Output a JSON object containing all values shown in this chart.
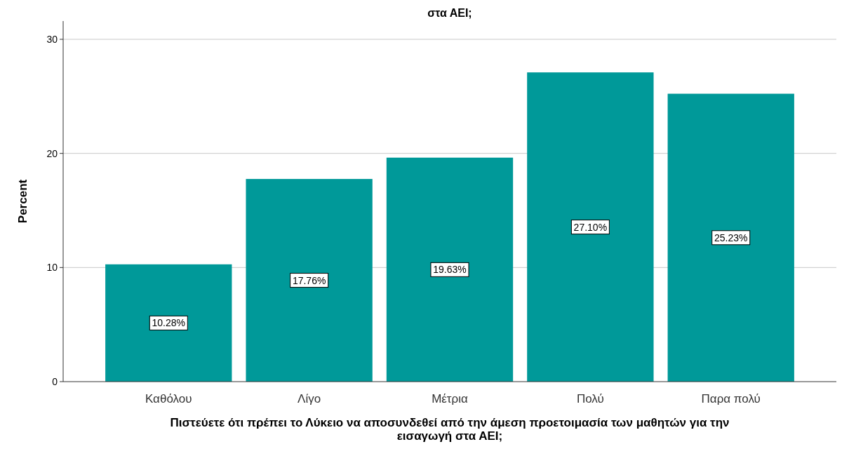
{
  "chart_data": {
    "type": "bar",
    "title": "στα ΑΕΙ;",
    "xlabel": "Πιστεύετε ότι πρέπει το Λύκειο να αποσυνδεθεί από την άμεση προετοιμασία των μαθητών για την εισαγωγή στα ΑΕΙ;",
    "ylabel": "Percent",
    "categories": [
      "Καθόλου",
      "Λίγο",
      "Μέτρια",
      "Πολύ",
      "Παρα πολύ"
    ],
    "values": [
      10.28,
      17.76,
      19.63,
      27.1,
      25.23
    ],
    "value_labels": [
      "10.28%",
      "17.76%",
      "19.63%",
      "27.10%",
      "25.23%"
    ],
    "color": "#009999",
    "ylim": [
      0,
      31.6
    ],
    "yticks": [
      0,
      10,
      20,
      30
    ],
    "grid": "y"
  }
}
